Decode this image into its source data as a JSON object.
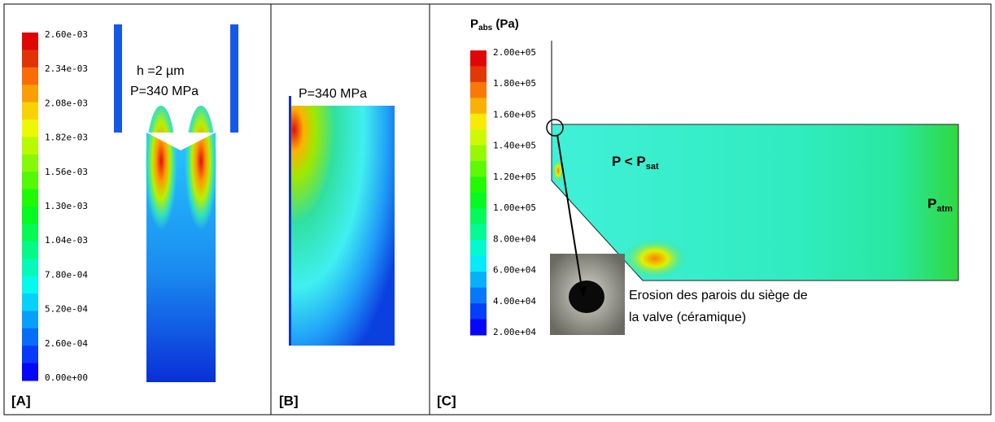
{
  "panel_a": {
    "label": "[A]",
    "colorbar_labels": [
      "2.60e-03",
      "2.34e-03",
      "2.08e-03",
      "1.82e-03",
      "1.56e-03",
      "1.30e-03",
      "1.04e-03",
      "7.80e-04",
      "5.20e-04",
      "2.60e-04",
      "0.00e+00"
    ],
    "annotation_gap": "h =2 µm",
    "annotation_pressure": "P=340 MPa"
  },
  "panel_b": {
    "label": "[B]",
    "annotation_pressure": "P=340 MPa"
  },
  "panel_c": {
    "label": "[C]",
    "colorbar_title": {
      "main": "P",
      "sub": "abs",
      "rest": " (Pa)"
    },
    "colorbar_labels": [
      "2.00e+05",
      "1.80e+05",
      "1.60e+05",
      "1.40e+05",
      "1.20e+05",
      "1.00e+05",
      "8.00e+04",
      "6.00e+04",
      "4.00e+04",
      "2.00e+04"
    ],
    "annotation_sat": {
      "main": "P < P",
      "sub": "sat"
    },
    "annotation_atm": {
      "main": "P",
      "sub": "atm"
    },
    "photo_caption": [
      "Erosion des parois du siège de",
      "la valve (céramique)"
    ]
  }
}
